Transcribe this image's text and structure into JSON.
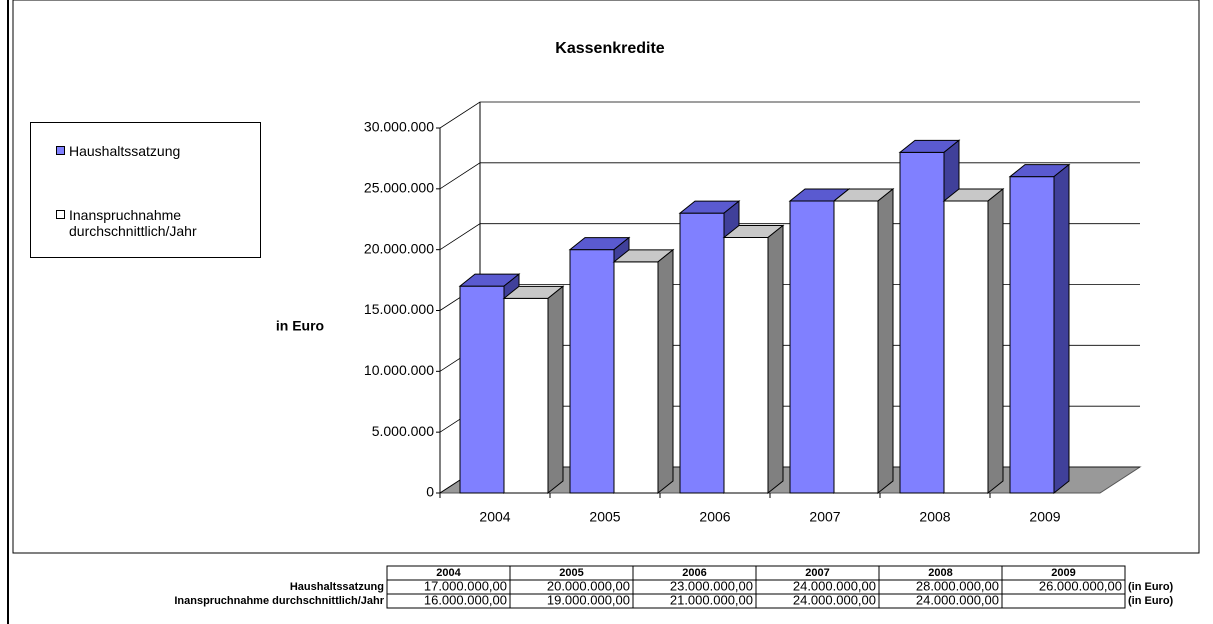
{
  "chart_data": {
    "type": "bar3d",
    "title": "Kassenkredite",
    "ylabel": "in Euro",
    "categories": [
      "2004",
      "2005",
      "2006",
      "2007",
      "2008",
      "2009"
    ],
    "series": [
      {
        "name": "Haushaltssatzung",
        "color": "#8080ff",
        "values": [
          17000000,
          20000000,
          23000000,
          24000000,
          28000000,
          26000000
        ],
        "value_labels": [
          "17.000.000,00",
          "20.000.000,00",
          "23.000.000,00",
          "24.000.000,00",
          "28.000.000,00",
          "26.000.000,00"
        ]
      },
      {
        "name": "Inanspruchnahme durchschnittlich/Jahr",
        "color": "#ffffff",
        "values": [
          16000000,
          19000000,
          21000000,
          24000000,
          24000000,
          null
        ],
        "value_labels": [
          "16.000.000,00",
          "19.000.000,00",
          "21.000.000,00",
          "24.000.000,00",
          "24.000.000,00",
          null
        ]
      }
    ],
    "ylim": [
      0,
      30000000
    ],
    "yticks": [
      0,
      {
        "value": 5000000,
        "label": "5.000.000"
      },
      {
        "value": 10000000,
        "label": "10.000.000"
      },
      {
        "value": 15000000,
        "label": "15.000.000"
      },
      {
        "value": 20000000,
        "label": "20.000.000"
      },
      {
        "value": 25000000,
        "label": "25.000.000"
      },
      {
        "value": 30000000,
        "label": "30.000.000"
      }
    ],
    "grid": true,
    "legend": "left"
  },
  "table": {
    "unit": "(in Euro)"
  }
}
